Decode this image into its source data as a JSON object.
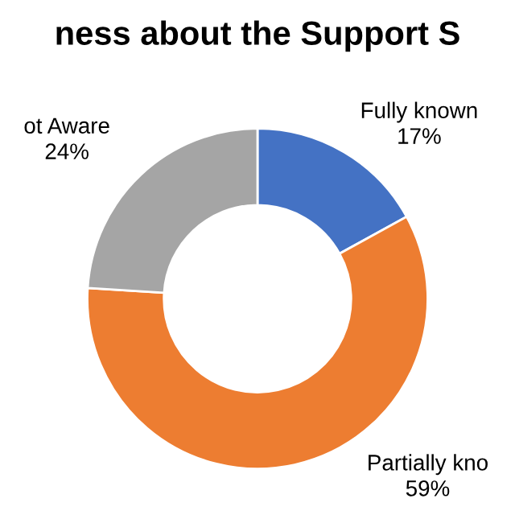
{
  "chart_data": {
    "type": "donut",
    "title": "ness about the Support S",
    "categories": [
      "Fully known",
      "Partially kno",
      "ot Aware"
    ],
    "values": [
      17,
      59,
      24
    ],
    "value_labels": [
      "17%",
      "59%",
      "24%"
    ],
    "colors": [
      "#4472c4",
      "#ed7d31",
      "#a5a5a5"
    ]
  }
}
